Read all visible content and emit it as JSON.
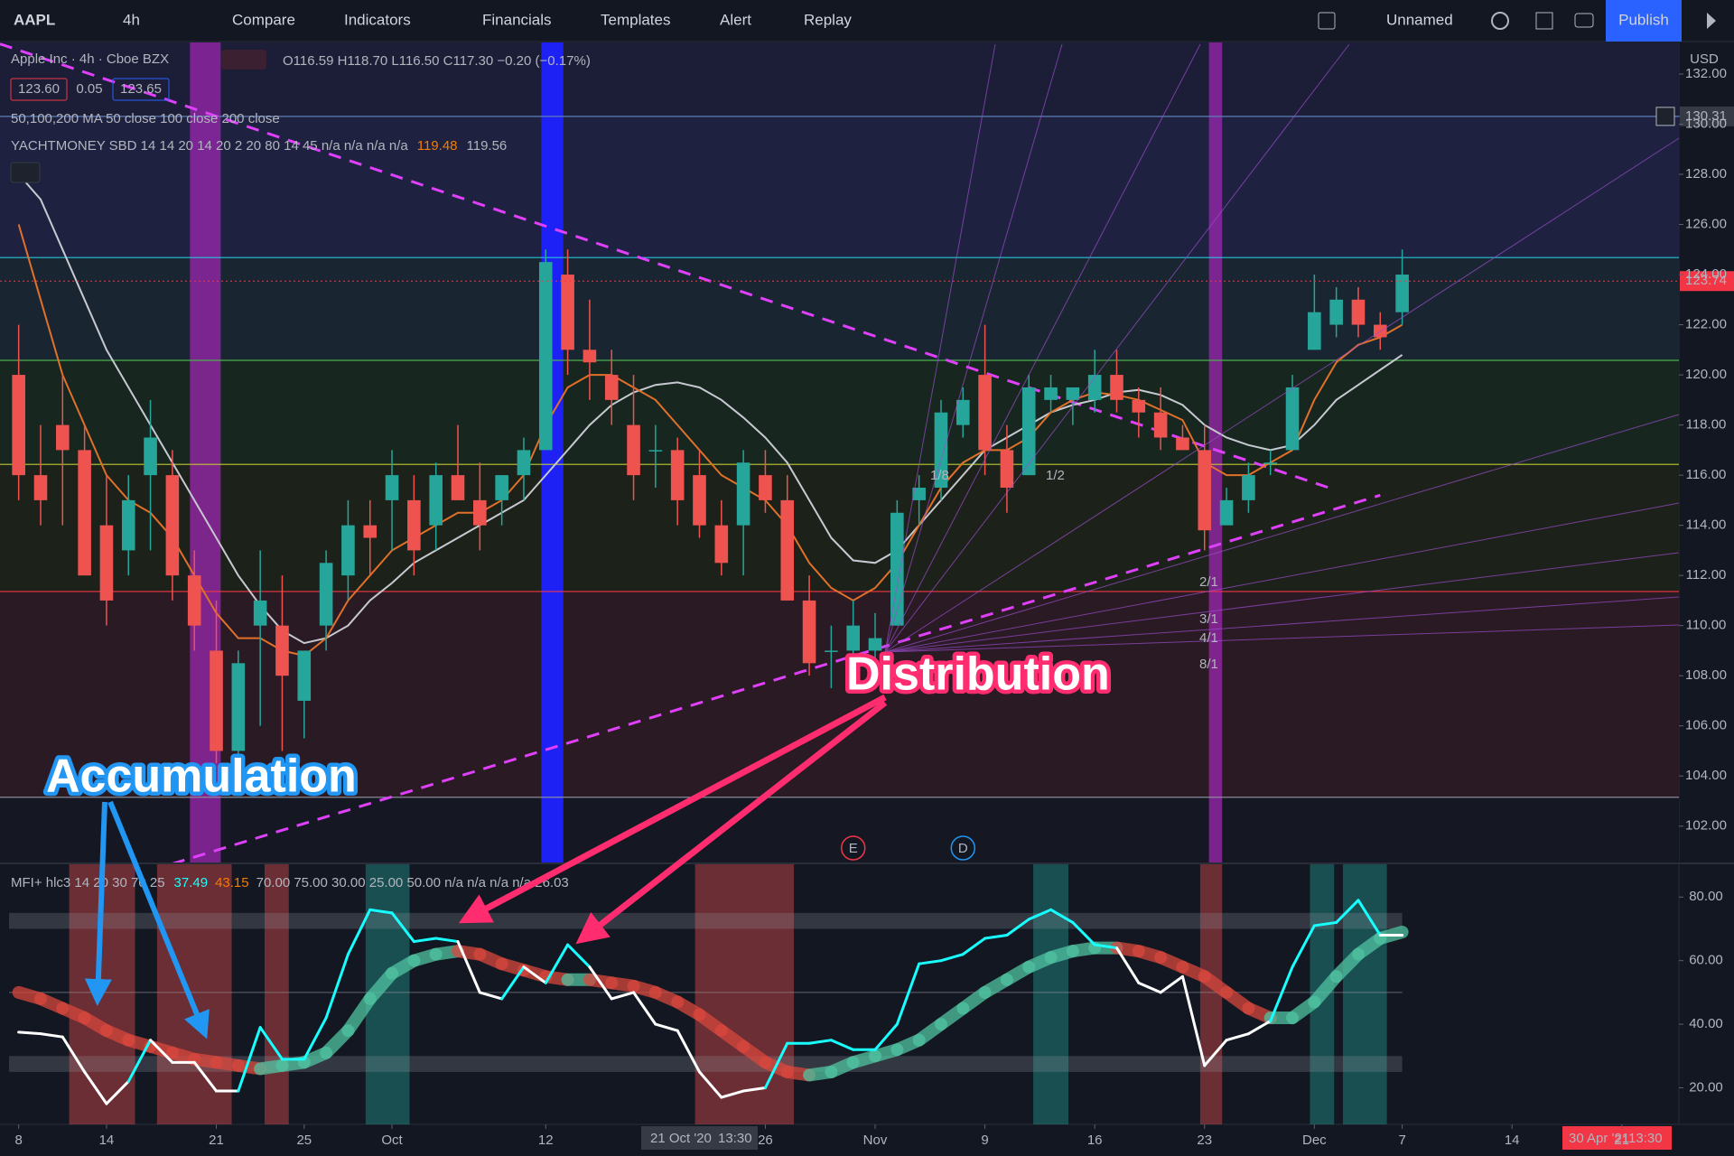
{
  "toolbar": {
    "symbol": "AAPL",
    "interval": "4h",
    "items": [
      "Compare",
      "Indicators",
      "Financials",
      "Templates",
      "Alert",
      "Replay"
    ],
    "layout_name": "Unnamed",
    "publish": "Publish"
  },
  "legend": {
    "title": "Apple Inc · 4h · Cboe BZX",
    "ohlc": "O116.59 H118.70 L116.50 C117.30 −0.20 (−0.17%)",
    "bid": "123.60",
    "spread": "0.05",
    "ask": "123.65",
    "ma_legend": "50,100,200 MA 50 close 100 close 200 close",
    "sbd_legend": "YACHTMONEY SBD 14 14 20 14 20 2 20 80 14 45  n/a  n/a  n/a  n/a",
    "sbd_values": [
      "119.48",
      "119.56"
    ],
    "mfi_legend": "MFI+ hlc3 14 20 30 70 25",
    "mfi_values": [
      "37.49",
      "43.15"
    ],
    "mfi_rest": "70.00  75.00  30.00  25.00  50.00  n/a  n/a  n/a  n/a  26.03"
  },
  "events": [
    {
      "label": "E",
      "x": 38
    },
    {
      "label": "D",
      "x": 43
    }
  ],
  "annotations": [
    "Accumulation",
    "Distribution"
  ],
  "price_axis": {
    "currency": "USD"
  },
  "time_axis": {
    "crosshair": "21 Oct '20",
    "crosshair_time": "13:30",
    "range_end": "30 Apr '21",
    "range_end_time": "13:30"
  },
  "chart_data": [
    {
      "type": "candlestick",
      "up_color": "#26a69a",
      "down_color": "#ef5350",
      "open": [
        120,
        116,
        118,
        117,
        114,
        113,
        116,
        116,
        112,
        109,
        105,
        110,
        110,
        107,
        110,
        112,
        114,
        115,
        115,
        114,
        116,
        115,
        115,
        116,
        117,
        124,
        121,
        120,
        118,
        117,
        117,
        116,
        114,
        114,
        116,
        115,
        111,
        109,
        109,
        109,
        110,
        115,
        115.5,
        118,
        120,
        117,
        116,
        119,
        119,
        119,
        120,
        119,
        118.5,
        117.5,
        117,
        114,
        115,
        116.5,
        117,
        121,
        122,
        123,
        122,
        122.5
      ],
      "high": [
        122,
        118,
        120,
        118,
        116,
        116,
        119,
        117,
        113,
        111,
        109,
        113,
        112,
        109,
        113,
        115,
        115,
        117,
        116,
        116.5,
        118,
        116.5,
        116,
        117.5,
        125,
        125,
        123,
        121,
        120,
        118,
        117.5,
        117,
        115,
        117,
        117,
        116,
        112,
        110,
        111,
        110.5,
        115,
        116,
        119,
        119.5,
        122,
        118,
        120,
        120,
        119.5,
        121,
        121,
        119.5,
        119.5,
        118,
        118,
        115.5,
        116.5,
        117,
        120,
        124,
        123.5,
        123.5,
        122.5,
        125
      ],
      "low": [
        115,
        114,
        114,
        112,
        110,
        112,
        113,
        111,
        109,
        104.5,
        104,
        106,
        105,
        105.5,
        109,
        111,
        112,
        113,
        112,
        113,
        115,
        113,
        114,
        115,
        117,
        120,
        119,
        118,
        115,
        115.5,
        114,
        113.5,
        112,
        112,
        114.5,
        111,
        108,
        107.5,
        108.5,
        107.5,
        110,
        114,
        115,
        117.5,
        116,
        114.5,
        116,
        118.5,
        118,
        118.5,
        118.5,
        117.5,
        117,
        117,
        113,
        114,
        114.5,
        116,
        117,
        121,
        121.5,
        121.5,
        121,
        122
      ],
      "close": [
        116,
        115,
        117,
        112,
        111,
        115,
        117.5,
        112,
        110,
        105,
        108.5,
        111,
        108,
        109,
        112.5,
        114,
        113.5,
        116,
        113,
        116,
        115,
        114,
        116,
        117,
        124.5,
        121,
        120.5,
        119,
        116,
        117,
        115,
        114,
        112.5,
        116.5,
        115,
        111,
        108.5,
        109,
        110,
        109.5,
        114.5,
        115.5,
        118.5,
        119,
        117,
        115.5,
        119.5,
        119.5,
        119.5,
        120,
        119,
        118.5,
        117.5,
        117,
        113.8,
        115,
        116,
        116.5,
        119.5,
        122.5,
        123,
        122,
        121.5,
        124
      ],
      "lines": [
        {
          "color": "#c7c9d1",
          "values": [
            128,
            127,
            125,
            123,
            121,
            119.5,
            118,
            116.5,
            115,
            113.5,
            112,
            110.8,
            109.8,
            109.3,
            109.5,
            110,
            111,
            111.7,
            112.5,
            113,
            113.5,
            114,
            114.5,
            115,
            116,
            117,
            118,
            118.8,
            119.3,
            119.6,
            119.7,
            119.5,
            119,
            118.3,
            117.5,
            116.5,
            115,
            113.5,
            112.6,
            112.5,
            113,
            114,
            115,
            116,
            117,
            117.5,
            118,
            118.5,
            118.8,
            119,
            119.3,
            119.4,
            119.2,
            118.8,
            118,
            117.5,
            117.2,
            117,
            117.2,
            118,
            119,
            119.6,
            120.2,
            120.8
          ]
        },
        {
          "color": "#e0702a",
          "values": [
            126,
            123,
            120,
            118,
            116,
            115,
            114.5,
            113.5,
            112,
            110.5,
            109.5,
            109.5,
            109,
            108.8,
            109.5,
            111,
            112,
            113,
            113.5,
            114,
            114.5,
            114.5,
            115,
            116,
            118,
            119.5,
            120,
            120,
            119.5,
            119,
            118,
            117,
            116,
            115.5,
            115,
            114,
            112.5,
            111.5,
            111,
            111.5,
            112.5,
            114,
            115.5,
            116.5,
            117,
            117,
            117.5,
            118.5,
            119,
            119.3,
            119.2,
            119,
            118.6,
            118.2,
            116.5,
            116,
            116,
            116.5,
            117,
            119,
            120.5,
            121.2,
            121.5,
            122
          ]
        }
      ],
      "levels": [
        {
          "value": 130.31,
          "color": "#5d7fb5",
          "fill": "#1e2240"
        },
        {
          "value": 124.68,
          "color": "#26c6da",
          "fill": "#192631"
        },
        {
          "value": 120.58,
          "color": "#4caf50",
          "fill": "#17261f"
        },
        {
          "value": 116.43,
          "color": "#c0ca33",
          "fill": "#1c2219"
        },
        {
          "value": 111.36,
          "color": "#f23645",
          "fill": "#291a24"
        },
        {
          "value": 103.15,
          "color": "#9598a1",
          "fill": "#151823"
        }
      ],
      "last_price": 123.74,
      "last_color": "#f23645",
      "highlights": [
        {
          "from": 7.8,
          "to": 9.2,
          "color": "#9c27b0"
        },
        {
          "from": 23.8,
          "to": 24.8,
          "color": "#1e22ff"
        },
        {
          "from": 54.2,
          "to": 54.8,
          "color": "#9c27b0"
        }
      ],
      "trendlines": [
        {
          "from": [
            -0.85,
            133.2
          ],
          "to": [
            60,
            115.4
          ]
        },
        {
          "from": [
            7,
            100.5
          ],
          "to": [
            62,
            115.2
          ]
        }
      ],
      "trend_color": "#e040fb",
      "fan_labels": [
        "1/8",
        "1/2",
        "2/1",
        "3/1",
        "4/1",
        "8/1"
      ],
      "xlim": [
        -0.85,
        75.6
      ],
      "xticks": [
        {
          "value": 0,
          "label": "8"
        },
        {
          "value": 4,
          "label": "14"
        },
        {
          "value": 9,
          "label": "21"
        },
        {
          "value": 13,
          "label": "25"
        },
        {
          "value": 17,
          "label": "Oct"
        },
        {
          "value": 24,
          "label": "12"
        },
        {
          "value": 34,
          "label": "26"
        },
        {
          "value": 39,
          "label": "Nov"
        },
        {
          "value": 44,
          "label": "9"
        },
        {
          "value": 49,
          "label": "16"
        },
        {
          "value": 54,
          "label": "23"
        },
        {
          "value": 59,
          "label": "Dec"
        },
        {
          "value": 63,
          "label": "7"
        },
        {
          "value": 68,
          "label": "14"
        },
        {
          "value": 73,
          "label": "21"
        }
      ],
      "ylim": [
        100.55,
        133.26
      ],
      "yticks": [
        {
          "value": 102,
          "label": "102.00"
        },
        {
          "value": 104,
          "label": "104.00"
        },
        {
          "value": 106,
          "label": "106.00"
        },
        {
          "value": 108,
          "label": "108.00"
        },
        {
          "value": 110,
          "label": "110.00"
        },
        {
          "value": 112,
          "label": "112.00"
        },
        {
          "value": 114,
          "label": "114.00"
        },
        {
          "value": 116,
          "label": "116.00"
        },
        {
          "value": 118,
          "label": "118.00"
        },
        {
          "value": 120,
          "label": "120.00"
        },
        {
          "value": 122,
          "label": "122.00"
        },
        {
          "value": 124,
          "label": "124.00"
        },
        {
          "value": 126,
          "label": "126.00"
        },
        {
          "value": 128,
          "label": "128.00"
        },
        {
          "value": 130,
          "label": "130.00"
        },
        {
          "value": 132,
          "label": "132.00"
        }
      ]
    },
    {
      "type": "line",
      "series": [
        {
          "values": [
            37.5,
            37,
            36,
            25,
            15,
            22,
            35,
            28,
            28,
            19,
            19,
            39,
            29,
            29,
            42,
            62,
            76,
            75,
            66,
            67,
            66,
            50,
            48,
            58,
            53,
            65,
            58,
            48,
            50,
            40,
            38,
            25,
            17,
            19,
            20,
            34,
            34,
            35,
            32,
            32,
            40,
            59,
            60,
            62,
            67,
            68,
            73,
            76,
            72,
            65,
            64,
            53,
            50,
            55,
            27,
            35,
            37,
            41,
            58,
            71,
            72,
            79,
            68,
            68
          ],
          "above_color": "#18ffff",
          "below_color": "#ffffff"
        },
        {
          "values": [
            50,
            48,
            45,
            42,
            38,
            35,
            33,
            31,
            29,
            28,
            27,
            26,
            27,
            28,
            31,
            38,
            48,
            56,
            60,
            62,
            63,
            62,
            59,
            57,
            55,
            54,
            54,
            53,
            52,
            50,
            47,
            43,
            38,
            33,
            28,
            25,
            24,
            25,
            28,
            30,
            32,
            35,
            40,
            45,
            50,
            54,
            58,
            61,
            63,
            64,
            64,
            63,
            61,
            58,
            55,
            50,
            45,
            42,
            42,
            47,
            55,
            62,
            67,
            69
          ],
          "rise_color": "#4fc3a1",
          "fall_color": "#d8473d"
        }
      ],
      "bands": [
        {
          "from": 70,
          "to": 75
        },
        {
          "from": 25,
          "to": 30
        }
      ],
      "midline": 50,
      "band_color": "#9598a1",
      "zones": [
        {
          "from": 2.3,
          "to": 5.3,
          "color": "#ef5350"
        },
        {
          "from": 6.3,
          "to": 9.7,
          "color": "#ef5350"
        },
        {
          "from": 11.2,
          "to": 12.3,
          "color": "#ef5350"
        },
        {
          "from": 30.8,
          "to": 35.3,
          "color": "#ef5350"
        },
        {
          "from": 53.8,
          "to": 54.8,
          "color": "#ef5350"
        },
        {
          "from": 15.8,
          "to": 17.8,
          "color": "#26a69a"
        },
        {
          "from": 46.2,
          "to": 47.8,
          "color": "#26a69a"
        },
        {
          "from": 58.8,
          "to": 59.9,
          "color": "#26a69a"
        },
        {
          "from": 60.3,
          "to": 62.3,
          "color": "#26a69a"
        }
      ],
      "ylim": [
        8.5,
        90.3
      ],
      "yticks": [
        {
          "value": 20,
          "label": "20.00"
        },
        {
          "value": 40,
          "label": "40.00"
        },
        {
          "value": 60,
          "label": "60.00"
        },
        {
          "value": 80,
          "label": "80.00"
        }
      ]
    }
  ]
}
